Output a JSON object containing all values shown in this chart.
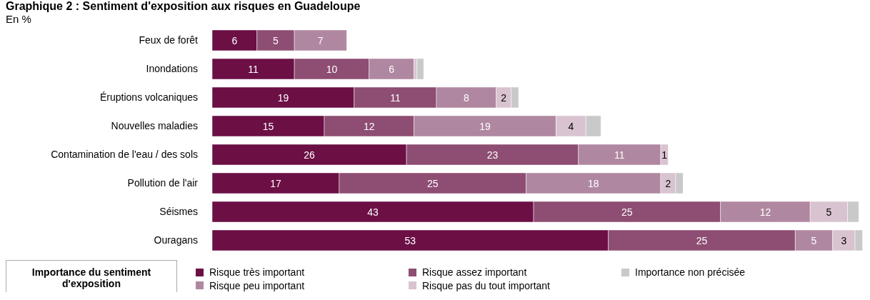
{
  "chart_data": {
    "type": "bar",
    "title": "Graphique 2 : Sentiment d'exposition aux risques en Guadeloupe",
    "subtitle": "En %",
    "orientation": "horizontal",
    "stacked": true,
    "legend": "bottom",
    "legend_title": "Importance du sentiment d'exposition",
    "grid": false,
    "tick_labels": "y",
    "xlim": [
      0,
      88
    ],
    "categories": [
      "Feux de forêt",
      "Inondations",
      "Éruptions volcaniques",
      "Nouvelles maladies",
      "Contamination de l'eau / des sols",
      "Pollution de l'air",
      "Séismes",
      "Ouragans"
    ],
    "series": [
      {
        "name": "Risque très important",
        "color": "#6b0f45",
        "values": [
          6,
          11,
          19,
          15,
          26,
          17,
          43,
          53
        ],
        "value_labels": [
          "6",
          "11",
          "19",
          "15",
          "26",
          "17",
          "43",
          "53"
        ]
      },
      {
        "name": "Risque assez important",
        "color": "#8e4d72",
        "values": [
          5,
          10,
          11,
          12,
          23,
          25,
          25,
          25
        ],
        "value_labels": [
          "5",
          "10",
          "11",
          "12",
          "23",
          "25",
          "25",
          "25"
        ]
      },
      {
        "name": "Risque peu important",
        "color": "#b087a0",
        "values": [
          7,
          6,
          8,
          19,
          11,
          18,
          12,
          5
        ],
        "value_labels": [
          "7",
          "6",
          "8",
          "19",
          "11",
          "18",
          "12",
          "5"
        ]
      },
      {
        "name": "Risque pas du tout important",
        "color": "#d9c3d1",
        "values": [
          null,
          0.4,
          2,
          4,
          1,
          2,
          5,
          3
        ],
        "value_labels": [
          null,
          null,
          "2",
          "4",
          "1",
          "2",
          "5",
          "3"
        ]
      },
      {
        "name": "Importance non précisée",
        "color": "#c9c9c9",
        "values": [
          null,
          0.9,
          1,
          2,
          null,
          1,
          1.5,
          1
        ],
        "value_labels": [
          null,
          null,
          null,
          null,
          null,
          null,
          null,
          null
        ]
      }
    ]
  }
}
